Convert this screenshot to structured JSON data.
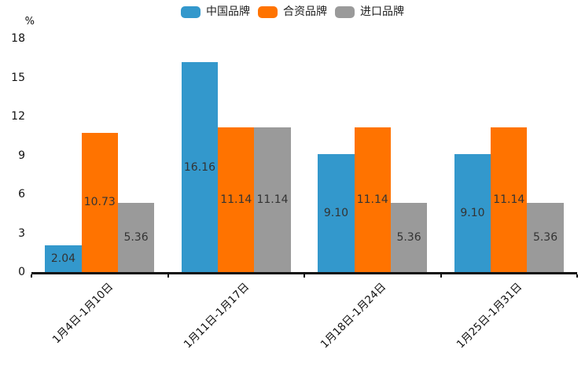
{
  "chart_data": {
    "type": "bar",
    "title": "",
    "unit_label": "%",
    "categories": [
      "1月4日-1月10日",
      "1月11日-1月17日",
      "1月18日-1月24日",
      "1月25日-1月31日"
    ],
    "series": [
      {
        "name": "中国品牌",
        "color": "#3398CC",
        "values": [
          2.04,
          16.16,
          9.1,
          9.1
        ],
        "labels": [
          "2.04",
          "16.16",
          "9.10",
          "9.10"
        ]
      },
      {
        "name": "合资品牌",
        "color": "#FF7300",
        "values": [
          10.73,
          11.14,
          11.14,
          11.14
        ],
        "labels": [
          "10.73",
          "11.14",
          "11.14",
          "11.14"
        ]
      },
      {
        "name": "进口品牌",
        "color": "#9A9A9A",
        "values": [
          5.36,
          11.14,
          5.36,
          5.36
        ],
        "labels": [
          "5.36",
          "11.14",
          "5.36",
          "5.36"
        ]
      }
    ],
    "yticks": [
      0,
      3,
      6,
      9,
      12,
      15,
      18
    ],
    "ylim": [
      0,
      18
    ],
    "grid": false,
    "legend_position": "top",
    "value_label_color": "#333333",
    "axis_color": "#111111"
  }
}
